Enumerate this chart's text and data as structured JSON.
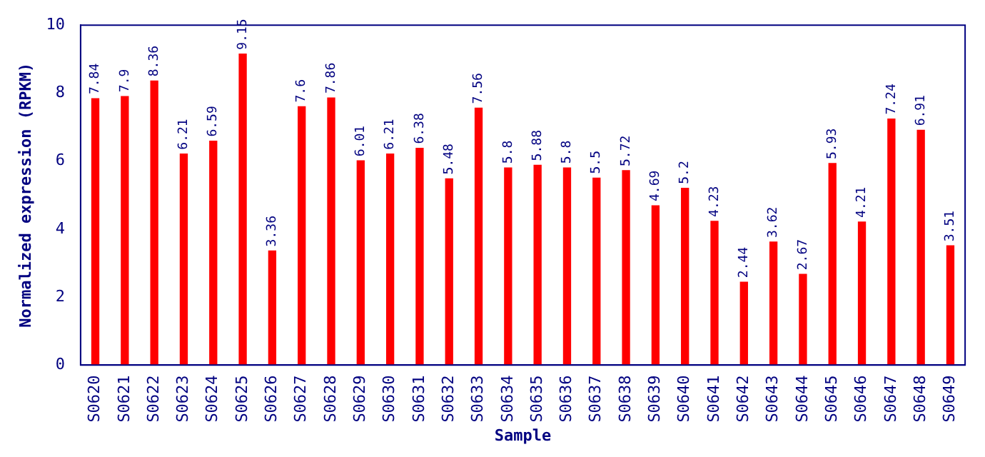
{
  "chart_data": {
    "type": "bar",
    "xlabel": "Sample",
    "ylabel": "Normalized expression (RPKM)",
    "categories": [
      "S0620",
      "S0621",
      "S0622",
      "S0623",
      "S0624",
      "S0625",
      "S0626",
      "S0627",
      "S0628",
      "S0629",
      "S0630",
      "S0631",
      "S0632",
      "S0633",
      "S0634",
      "S0635",
      "S0636",
      "S0637",
      "S0638",
      "S0639",
      "S0640",
      "S0641",
      "S0642",
      "S0643",
      "S0644",
      "S0645",
      "S0646",
      "S0647",
      "S0648",
      "S0649"
    ],
    "values": [
      7.84,
      7.9,
      8.36,
      6.21,
      6.59,
      9.15,
      3.36,
      7.6,
      7.86,
      6.01,
      6.21,
      6.38,
      5.48,
      7.56,
      5.8,
      5.88,
      5.8,
      5.5,
      5.72,
      4.69,
      5.2,
      4.23,
      2.44,
      3.62,
      2.67,
      5.93,
      4.21,
      7.24,
      6.91,
      3.51
    ],
    "color": "#ff0000",
    "ylim": [
      0,
      10
    ],
    "yticks": [
      0,
      2,
      4,
      6,
      8,
      10
    ],
    "grid": false,
    "legend": false,
    "data_labels": true
  }
}
